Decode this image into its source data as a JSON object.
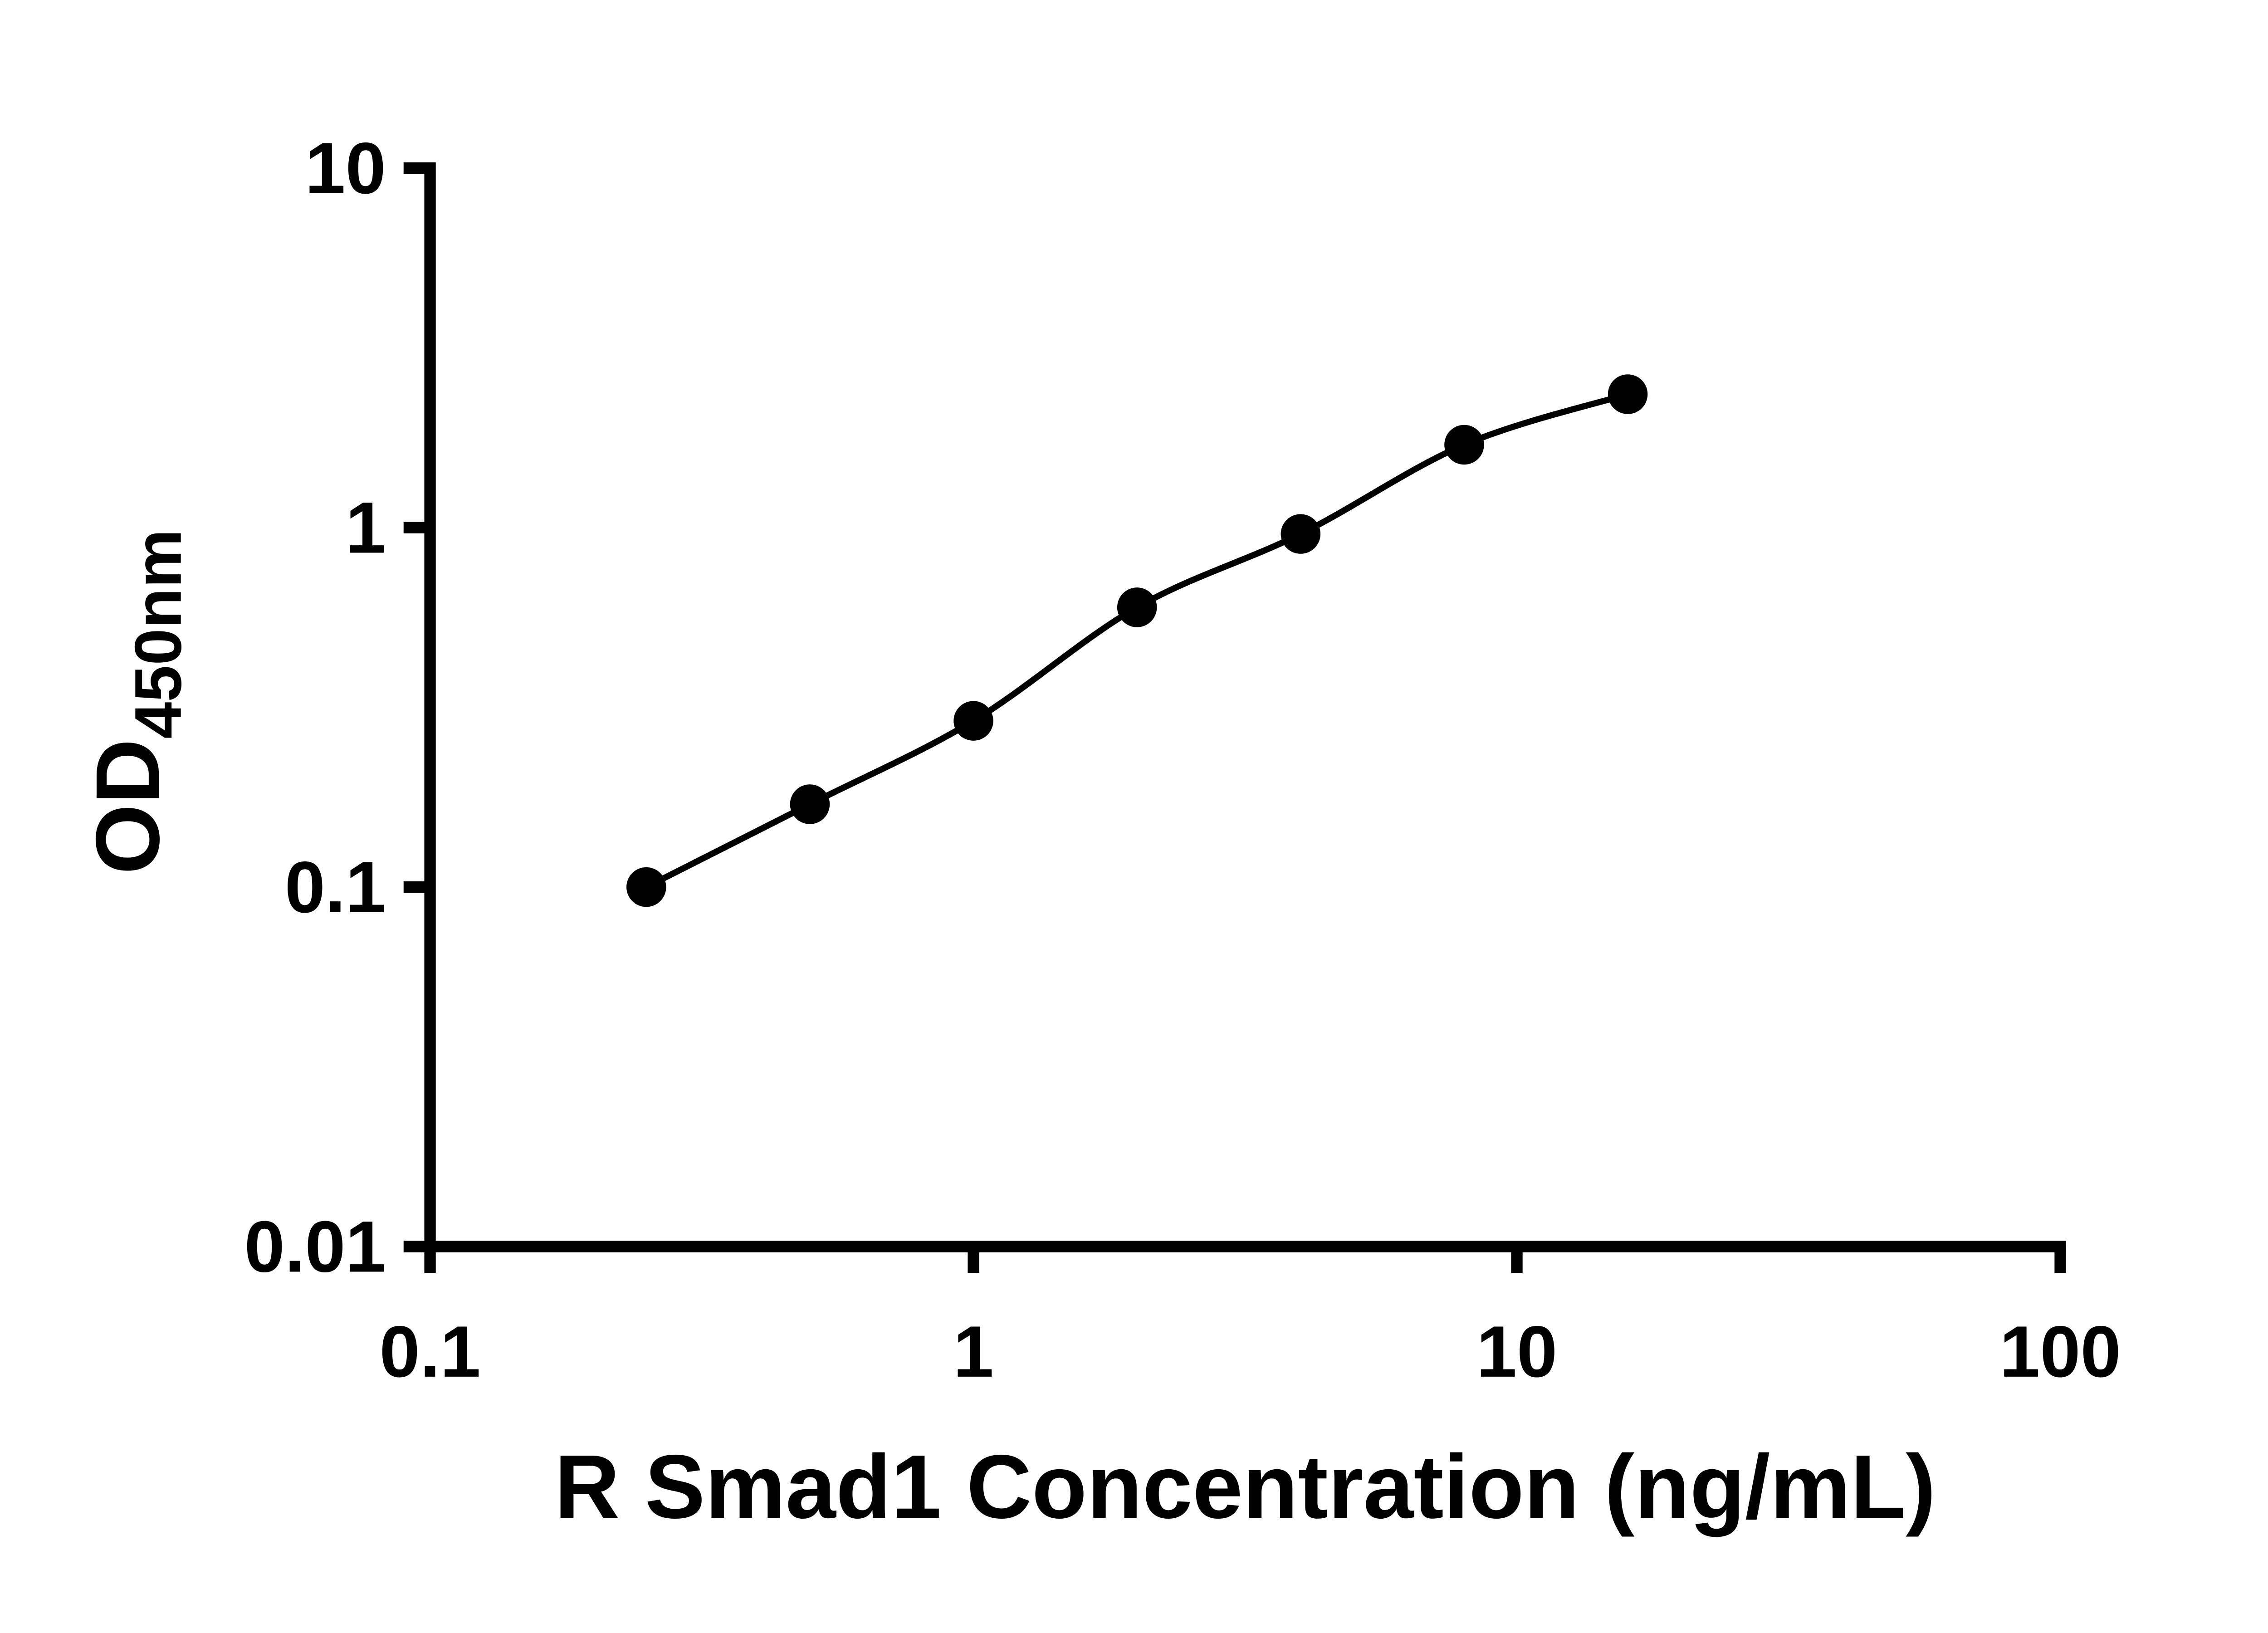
{
  "figure": {
    "background": "#ffffff"
  },
  "chart_data": {
    "type": "scatter",
    "style": "scatter-with-smooth-line",
    "x": [
      0.25,
      0.5,
      1,
      2,
      4,
      8,
      16
    ],
    "y": [
      0.1,
      0.17,
      0.29,
      0.6,
      0.96,
      1.7,
      2.35
    ],
    "xlabel": "R Smad1 Concentration (ng/mL)",
    "ylabel_main": "OD",
    "ylabel_sub": "450nm",
    "x_scale": "log",
    "y_scale": "log",
    "xlim": [
      0.1,
      100
    ],
    "ylim": [
      0.01,
      10
    ],
    "x_ticks": [
      0.1,
      1,
      10,
      100
    ],
    "x_tick_labels": [
      "0.1",
      "1",
      "10",
      "100"
    ],
    "y_ticks": [
      0.01,
      0.1,
      1,
      10
    ],
    "y_tick_labels": [
      "0.01",
      "0.1",
      "1",
      "10"
    ],
    "grid": false,
    "legend": "none",
    "line_color": "#000000",
    "marker_color": "#000000",
    "axis_color": "#000000"
  }
}
